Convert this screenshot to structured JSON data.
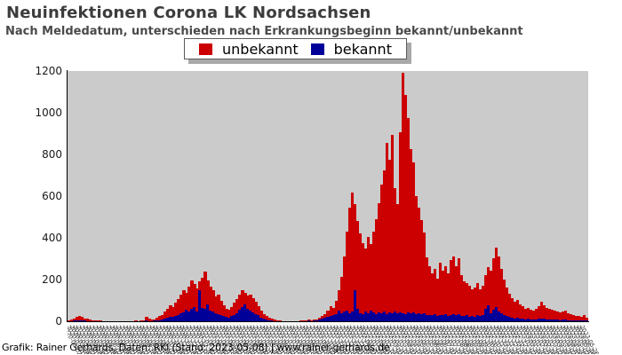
{
  "header": {
    "title": "Neuinfektionen Corona LK Nordsachsen",
    "subtitle": "Nach Meldedatum, unterschieden nach Erkrankungsbeginn bekannt/unbekannt"
  },
  "legend": {
    "items": [
      {
        "label": "unbekannt",
        "color": "#cc0000",
        "swatch_icon": "red-square-icon"
      },
      {
        "label": "bekannt",
        "color": "#000099",
        "swatch_icon": "blue-square-icon"
      }
    ]
  },
  "footer": {
    "text": "Grafik: Rainer Gerhards, Daten: RKI (Stand: 2023-05-08) | www.rainer-gerhards.de"
  },
  "chart_data": {
    "type": "bar",
    "stacked": true,
    "title": "Neuinfektionen Corona LK Nordsachsen",
    "subtitle": "Nach Meldedatum, unterschieden nach Erkrankungsbeginn bekannt/unbekannt",
    "xlabel": "",
    "ylabel": "",
    "ylim": [
      0,
      1200
    ],
    "y_ticks": [
      0,
      200,
      400,
      600,
      800,
      1000,
      1200
    ],
    "grid": false,
    "legend_position": "top-center",
    "plot_bg": "#cbcbcb",
    "colors": {
      "unbekannt": "#cc0000",
      "bekannt": "#000099",
      "axis": "#000000"
    },
    "x_tick_months": [
      "2020-03",
      "2020-04",
      "2020-05",
      "2020-06",
      "2020-07",
      "2020-08",
      "2020-09",
      "2020-10",
      "2020-11",
      "2020-12",
      "2021-01",
      "2021-02",
      "2021-03",
      "2021-04",
      "2021-05",
      "2021-06",
      "2021-07",
      "2021-08",
      "2021-09",
      "2021-10",
      "2021-11",
      "2021-12",
      "2022-01",
      "2022-02",
      "2022-03",
      "2022-04",
      "2022-05",
      "2022-06",
      "2022-07",
      "2022-08",
      "2022-09",
      "2022-10",
      "2022-11",
      "2022-12",
      "2023-01",
      "2023-02",
      "2023-03",
      "2023-04",
      "2023-05"
    ],
    "x_tick_days": [
      "02",
      "10",
      "18",
      "26"
    ],
    "series": [
      {
        "name": "unbekannt",
        "values": [
          3,
          6,
          11,
          18,
          21,
          16,
          12,
          9,
          6,
          5,
          4,
          3,
          2,
          2,
          1,
          2,
          1,
          2,
          1,
          1,
          1,
          2,
          1,
          1,
          2,
          2,
          2,
          2,
          3,
          19,
          12,
          6,
          7,
          12,
          18,
          24,
          33,
          42,
          56,
          50,
          62,
          78,
          90,
          106,
          83,
          120,
          138,
          108,
          113,
          40,
          142,
          178,
          118,
          118,
          102,
          78,
          92,
          68,
          52,
          38,
          36,
          44,
          58,
          68,
          73,
          78,
          58,
          62,
          78,
          68,
          56,
          44,
          34,
          24,
          18,
          13,
          8,
          6,
          3,
          2,
          1,
          1,
          1,
          1,
          1,
          1,
          1,
          2,
          4,
          2,
          4,
          2,
          4,
          5,
          9,
          14,
          20,
          30,
          46,
          34,
          66,
          100,
          175,
          265,
          380,
          505,
          573,
          410,
          420,
          380,
          340,
          305,
          367,
          320,
          388,
          454,
          521,
          615,
          677,
          819,
          731,
          855,
          594,
          522,
          863,
          1150,
          1049,
          931,
          787,
          718,
          564,
          505,
          451,
          387,
          273,
          232,
          204,
          218,
          179,
          250,
          214,
          228,
          206,
          262,
          276,
          234,
          268,
          196,
          168,
          154,
          150,
          126,
          140,
          154,
          128,
          142,
          162,
          187,
          202,
          247,
          282,
          267,
          214,
          172,
          136,
          110,
          94,
          77,
          86,
          69,
          60,
          52,
          55,
          47,
          44,
          52,
          61,
          79,
          65,
          56,
          51,
          48,
          42,
          39,
          36,
          39,
          43,
          34,
          31,
          27,
          24,
          22,
          19,
          27,
          13
        ]
      },
      {
        "name": "bekannt",
        "values": [
          1,
          2,
          3,
          4,
          5,
          4,
          3,
          2,
          2,
          1,
          1,
          1,
          1,
          0,
          1,
          0,
          0,
          0,
          0,
          1,
          0,
          0,
          0,
          1,
          0,
          1,
          0,
          1,
          1,
          3,
          2,
          2,
          3,
          4,
          6,
          8,
          12,
          18,
          22,
          20,
          26,
          30,
          38,
          42,
          55,
          48,
          60,
          70,
          45,
          150,
          66,
          60,
          80,
          50,
          46,
          40,
          36,
          30,
          26,
          20,
          18,
          24,
          30,
          40,
          55,
          70,
          80,
          60,
          52,
          44,
          36,
          28,
          18,
          12,
          8,
          5,
          4,
          2,
          2,
          1,
          1,
          0,
          1,
          0,
          1,
          0,
          1,
          2,
          2,
          3,
          3,
          4,
          4,
          5,
          7,
          12,
          16,
          20,
          26,
          30,
          34,
          50,
          40,
          45,
          50,
          40,
          45,
          150,
          60,
          40,
          35,
          45,
          38,
          50,
          42,
          36,
          44,
          40,
          48,
          36,
          44,
          40,
          46,
          38,
          42,
          40,
          36,
          44,
          38,
          42,
          36,
          40,
          34,
          38,
          32,
          30,
          28,
          34,
          26,
          32,
          28,
          34,
          26,
          30,
          36,
          28,
          34,
          26,
          24,
          28,
          22,
          26,
          22,
          28,
          24,
          30,
          60,
          75,
          40,
          55,
          70,
          45,
          38,
          30,
          26,
          22,
          18,
          15,
          16,
          13,
          12,
          10,
          11,
          9,
          8,
          10,
          11,
          13,
          11,
          10,
          9,
          8,
          8,
          7,
          6,
          7,
          7,
          6,
          5,
          5,
          4,
          4,
          3,
          5,
          3
        ]
      }
    ]
  }
}
